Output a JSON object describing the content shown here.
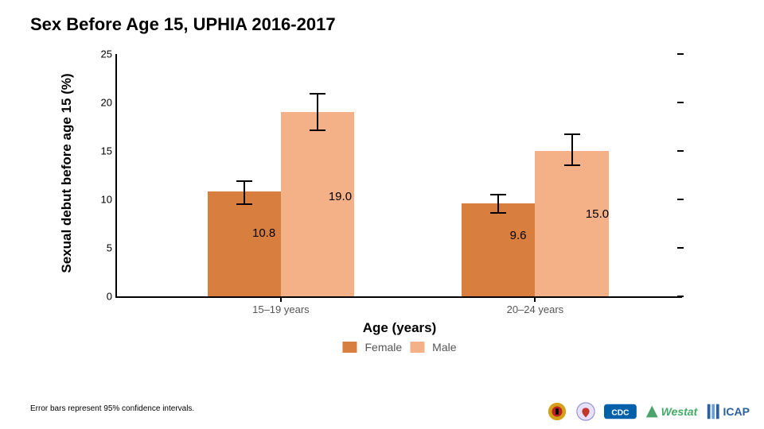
{
  "title": "Sex Before Age 15, UPHIA 2016-2017",
  "footnote": "Error bars represent 95% confidence intervals.",
  "chart": {
    "type": "bar",
    "ylabel": "Sexual debut before age 15 (%)",
    "xlabel": "Age (years)",
    "ylim": [
      0,
      25
    ],
    "ytick_step": 5,
    "yticks": [
      0,
      5,
      10,
      15,
      20,
      25
    ],
    "groups": [
      {
        "label": "15–19 years",
        "xtick_pos_pct": 29
      },
      {
        "label": "20–24 years",
        "xtick_pos_pct": 74
      }
    ],
    "series": [
      {
        "name": "Female",
        "color": "#d87f3f"
      },
      {
        "name": "Male",
        "color": "#f4b086"
      }
    ],
    "bars": [
      {
        "group": 0,
        "series": 0,
        "value": 10.8,
        "err_lo": 9.6,
        "err_hi": 12.0,
        "left_pct": 16,
        "width_pct": 13,
        "label_x_pct": 26,
        "label_y_val": 7.2
      },
      {
        "group": 0,
        "series": 1,
        "value": 19.0,
        "err_lo": 17.2,
        "err_hi": 21.0,
        "left_pct": 29,
        "width_pct": 13,
        "label_x_pct": 39.5,
        "label_y_val": 11.0
      },
      {
        "group": 1,
        "series": 0,
        "value": 9.6,
        "err_lo": 8.7,
        "err_hi": 10.6,
        "left_pct": 61,
        "width_pct": 13,
        "label_x_pct": 71,
        "label_y_val": 7.0
      },
      {
        "group": 1,
        "series": 1,
        "value": 15.0,
        "err_lo": 13.6,
        "err_hi": 16.8,
        "left_pct": 74,
        "width_pct": 13,
        "label_x_pct": 85,
        "label_y_val": 9.2
      }
    ],
    "axis_color": "#000000",
    "background_color": "#ffffff",
    "title_fontsize": 22,
    "label_fontsize": 17,
    "tick_fontsize": 13,
    "value_fontsize": 15
  },
  "legend": {
    "female": "Female",
    "male": "Male"
  },
  "logos": [
    "Uganda",
    "PEPFAR",
    "CDC",
    "Westat",
    "ICAP"
  ]
}
